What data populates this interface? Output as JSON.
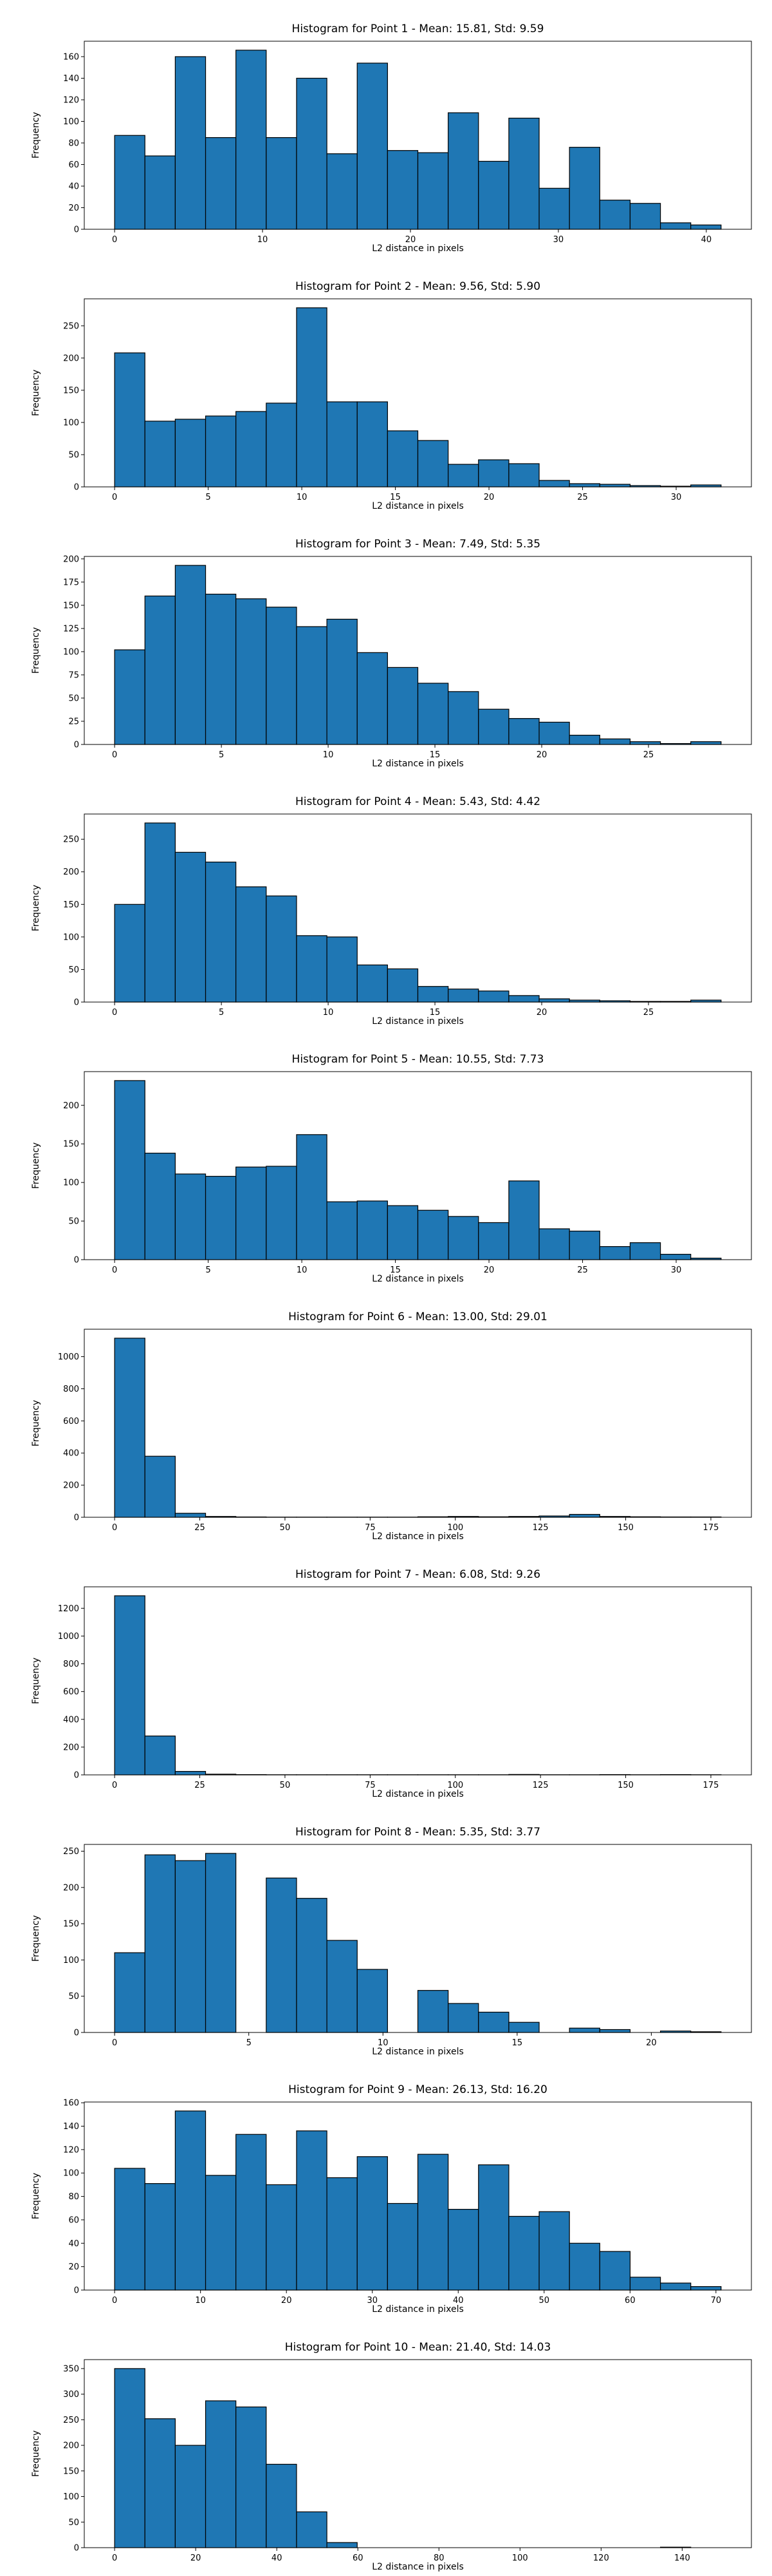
{
  "chart_data": [
    {
      "type": "histogram",
      "title": "Histogram for Point 1 - Mean: 15.81, Std: 9.59",
      "xlabel": "L2 distance in pixels",
      "ylabel": "Frequency",
      "color": "#1f77b4",
      "edgecolor": "#000000",
      "bins": [
        0,
        2.05,
        4.1,
        6.15,
        8.2,
        10.25,
        12.3,
        14.35,
        16.4,
        18.45,
        20.5,
        22.55,
        24.6,
        26.65,
        28.7,
        30.75,
        32.8,
        34.85,
        36.9,
        38.95,
        41
      ],
      "counts": [
        87,
        68,
        160,
        85,
        166,
        85,
        140,
        70,
        154,
        73,
        71,
        108,
        63,
        103,
        38,
        76,
        27,
        24,
        6,
        4
      ],
      "xlim": [
        -2.05,
        43.05
      ],
      "xticks": [
        0,
        10,
        20,
        30,
        40
      ],
      "ylim": [
        0,
        174.3
      ],
      "yticks": [
        0,
        20,
        40,
        60,
        80,
        100,
        120,
        140,
        160
      ]
    },
    {
      "type": "histogram",
      "title": "Histogram for Point 2 - Mean: 9.56, Std: 5.90",
      "xlabel": "L2 distance in pixels",
      "ylabel": "Frequency",
      "color": "#1f77b4",
      "edgecolor": "#000000",
      "bins": [
        0,
        1.62,
        3.24,
        4.86,
        6.48,
        8.1,
        9.72,
        11.34,
        12.96,
        14.58,
        16.2,
        17.82,
        19.44,
        21.06,
        22.68,
        24.3,
        25.92,
        27.54,
        29.16,
        30.78,
        32.4
      ],
      "counts": [
        208,
        102,
        105,
        110,
        117,
        130,
        278,
        132,
        132,
        87,
        72,
        35,
        42,
        36,
        10,
        5,
        4,
        2,
        1,
        3
      ],
      "xlim": [
        -1.62,
        34.02
      ],
      "xticks": [
        0,
        5,
        10,
        15,
        20,
        25,
        30
      ],
      "ylim": [
        0,
        291.9
      ],
      "yticks": [
        0,
        50,
        100,
        150,
        200,
        250
      ]
    },
    {
      "type": "histogram",
      "title": "Histogram for Point 3 - Mean: 7.49, Std: 5.35",
      "xlabel": "L2 distance in pixels",
      "ylabel": "Frequency",
      "color": "#1f77b4",
      "edgecolor": "#000000",
      "bins": [
        0,
        1.42,
        2.84,
        4.26,
        5.68,
        7.1,
        8.52,
        9.94,
        11.36,
        12.78,
        14.2,
        15.62,
        17.04,
        18.46,
        19.88,
        21.3,
        22.72,
        24.14,
        25.56,
        26.98,
        28.4
      ],
      "counts": [
        102,
        160,
        193,
        162,
        157,
        148,
        127,
        135,
        99,
        83,
        66,
        57,
        38,
        28,
        24,
        10,
        6,
        3,
        1,
        3
      ],
      "xlim": [
        -1.42,
        29.82
      ],
      "xticks": [
        0,
        5,
        10,
        15,
        20,
        25
      ],
      "ylim": [
        0,
        202.65
      ],
      "yticks": [
        0,
        25,
        50,
        75,
        100,
        125,
        150,
        175,
        200
      ]
    },
    {
      "type": "histogram",
      "title": "Histogram for Point 4 - Mean: 5.43, Std: 4.42",
      "xlabel": "L2 distance in pixels",
      "ylabel": "Frequency",
      "color": "#1f77b4",
      "edgecolor": "#000000",
      "bins": [
        0,
        1.42,
        2.84,
        4.26,
        5.68,
        7.1,
        8.52,
        9.94,
        11.36,
        12.78,
        14.2,
        15.62,
        17.04,
        18.46,
        19.88,
        21.3,
        22.72,
        24.14,
        25.56,
        26.98,
        28.4
      ],
      "counts": [
        150,
        275,
        230,
        215,
        177,
        163,
        102,
        100,
        57,
        51,
        24,
        20,
        17,
        10,
        5,
        3,
        2,
        1,
        1,
        3
      ],
      "xlim": [
        -1.42,
        29.82
      ],
      "xticks": [
        0,
        5,
        10,
        15,
        20,
        25
      ],
      "ylim": [
        0,
        288.75
      ],
      "yticks": [
        0,
        50,
        100,
        150,
        200,
        250
      ]
    },
    {
      "type": "histogram",
      "title": "Histogram for Point 5 - Mean: 10.55, Std: 7.73",
      "xlabel": "L2 distance in pixels",
      "ylabel": "Frequency",
      "color": "#1f77b4",
      "edgecolor": "#000000",
      "bins": [
        0,
        1.62,
        3.24,
        4.86,
        6.48,
        8.1,
        9.72,
        11.34,
        12.96,
        14.58,
        16.2,
        17.82,
        19.44,
        21.06,
        22.68,
        24.3,
        25.92,
        27.54,
        29.16,
        30.78,
        32.4
      ],
      "counts": [
        232,
        138,
        111,
        108,
        120,
        121,
        162,
        75,
        76,
        70,
        64,
        56,
        48,
        102,
        40,
        37,
        17,
        22,
        7,
        2
      ],
      "xlim": [
        -1.62,
        34.02
      ],
      "xticks": [
        0,
        5,
        10,
        15,
        20,
        25,
        30
      ],
      "ylim": [
        0,
        243.6
      ],
      "yticks": [
        0,
        50,
        100,
        150,
        200
      ]
    },
    {
      "type": "histogram",
      "title": "Histogram for Point 6 - Mean: 13.00, Std: 29.01",
      "xlabel": "L2 distance in pixels",
      "ylabel": "Frequency",
      "color": "#1f77b4",
      "edgecolor": "#000000",
      "bins": [
        0,
        8.9,
        17.8,
        26.7,
        35.6,
        44.5,
        53.4,
        62.3,
        71.2,
        80.1,
        89,
        97.9,
        106.8,
        115.7,
        124.6,
        133.5,
        142.4,
        151.3,
        160.2,
        169.1,
        178
      ],
      "counts": [
        1115,
        380,
        25,
        5,
        2,
        1,
        1,
        1,
        1,
        1,
        3,
        5,
        3,
        5,
        8,
        18,
        5,
        3,
        2,
        2
      ],
      "xlim": [
        -8.9,
        186.9
      ],
      "xticks": [
        0,
        25,
        50,
        75,
        100,
        125,
        150,
        175
      ],
      "ylim": [
        0,
        1170.75
      ],
      "yticks": [
        0,
        200,
        400,
        600,
        800,
        1000
      ]
    },
    {
      "type": "histogram",
      "title": "Histogram for Point 7 - Mean: 6.08, Std: 9.26",
      "xlabel": "L2 distance in pixels",
      "ylabel": "Frequency",
      "color": "#1f77b4",
      "edgecolor": "#000000",
      "bins": [
        0,
        8.9,
        17.8,
        26.7,
        35.6,
        44.5,
        53.4,
        62.3,
        71.2,
        80.1,
        89,
        97.9,
        106.8,
        115.7,
        124.6,
        133.5,
        142.4,
        151.3,
        160.2,
        169.1,
        178
      ],
      "counts": [
        1290,
        280,
        25,
        5,
        2,
        1,
        1,
        1,
        1,
        1,
        1,
        1,
        1,
        3,
        1,
        1,
        2,
        1,
        2,
        1
      ],
      "xlim": [
        -8.9,
        186.9
      ],
      "xticks": [
        0,
        25,
        50,
        75,
        100,
        125,
        150,
        175
      ],
      "ylim": [
        0,
        1354.5
      ],
      "yticks": [
        0,
        200,
        400,
        600,
        800,
        1000,
        1200
      ]
    },
    {
      "type": "histogram",
      "title": "Histogram for Point 8 - Mean: 5.35, Std: 3.77",
      "xlabel": "L2 distance in pixels",
      "ylabel": "Frequency",
      "color": "#1f77b4",
      "edgecolor": "#000000",
      "bins": [
        0,
        1.13,
        2.26,
        3.39,
        4.52,
        5.65,
        6.78,
        7.91,
        9.04,
        10.17,
        11.3,
        12.43,
        13.56,
        14.69,
        15.82,
        16.95,
        18.08,
        19.21,
        20.34,
        21.47,
        22.6
      ],
      "counts": [
        110,
        245,
        237,
        247,
        0,
        213,
        185,
        127,
        87,
        0,
        58,
        40,
        28,
        14,
        0,
        6,
        4,
        0,
        2,
        1
      ],
      "xlim": [
        -1.13,
        23.73
      ],
      "xticks": [
        0,
        5,
        10,
        15,
        20
      ],
      "ylim": [
        0,
        259.35
      ],
      "yticks": [
        0,
        50,
        100,
        150,
        200,
        250
      ]
    },
    {
      "type": "histogram",
      "title": "Histogram for Point 9 - Mean: 26.13, Std: 16.20",
      "xlabel": "L2 distance in pixels",
      "ylabel": "Frequency",
      "color": "#1f77b4",
      "edgecolor": "#000000",
      "bins": [
        0,
        3.53,
        7.06,
        10.59,
        14.12,
        17.65,
        21.18,
        24.71,
        28.24,
        31.77,
        35.3,
        38.83,
        42.36,
        45.89,
        49.42,
        52.95,
        56.48,
        60.01,
        63.54,
        67.07,
        70.6
      ],
      "counts": [
        104,
        91,
        153,
        98,
        133,
        90,
        136,
        96,
        114,
        74,
        116,
        69,
        107,
        63,
        67,
        40,
        33,
        11,
        6,
        3
      ],
      "xlim": [
        -3.53,
        74.13
      ],
      "xticks": [
        0,
        10,
        20,
        30,
        40,
        50,
        60,
        70
      ],
      "ylim": [
        0,
        160.65
      ],
      "yticks": [
        0,
        20,
        40,
        60,
        80,
        100,
        120,
        140,
        160
      ]
    },
    {
      "type": "histogram",
      "title": "Histogram for Point 10 - Mean: 21.40, Std: 14.03",
      "xlabel": "L2 distance in pixels",
      "ylabel": "Frequency",
      "color": "#1f77b4",
      "edgecolor": "#000000",
      "bins": [
        0,
        7.48,
        14.96,
        22.44,
        29.92,
        37.4,
        44.88,
        52.36,
        59.84,
        67.32,
        74.8,
        82.28,
        89.76,
        97.24,
        104.72,
        112.2,
        119.68,
        127.16,
        134.64,
        142.12,
        149.6
      ],
      "counts": [
        350,
        252,
        200,
        287,
        275,
        163,
        70,
        10,
        0,
        0,
        0,
        0,
        0,
        0,
        0,
        0,
        0,
        0,
        1,
        0
      ],
      "xlim": [
        -7.48,
        157.08
      ],
      "xticks": [
        0,
        20,
        40,
        60,
        80,
        100,
        120,
        140
      ],
      "ylim": [
        0,
        367.5
      ],
      "yticks": [
        0,
        50,
        100,
        150,
        200,
        250,
        300,
        350
      ]
    }
  ]
}
